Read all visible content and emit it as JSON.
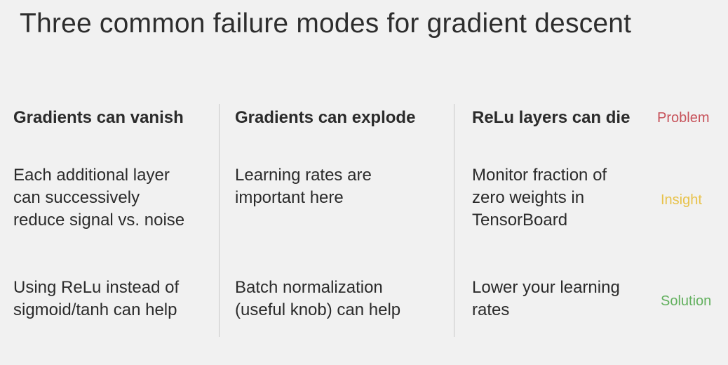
{
  "title": "Three common failure modes for gradient descent",
  "columns": [
    {
      "problem": "Gradients can vanish",
      "insight": "Each additional layer\ncan successively\nreduce signal vs. noise",
      "solution": "Using ReLu instead of\nsigmoid/tanh can help"
    },
    {
      "problem": "Gradients can explode",
      "insight": "Learning rates are\nimportant here",
      "solution": "Batch normalization\n(useful knob) can help"
    },
    {
      "problem": "ReLu layers can die",
      "insight": "Monitor fraction of\nzero weights in\nTensorBoard",
      "solution": "Lower your learning\nrates"
    }
  ],
  "row_labels": {
    "problem": "Problem",
    "insight": "Insight",
    "solution": "Solution"
  },
  "colors": {
    "problem": "#c7525a",
    "insight": "#e8c24a",
    "solution": "#62b05e"
  }
}
